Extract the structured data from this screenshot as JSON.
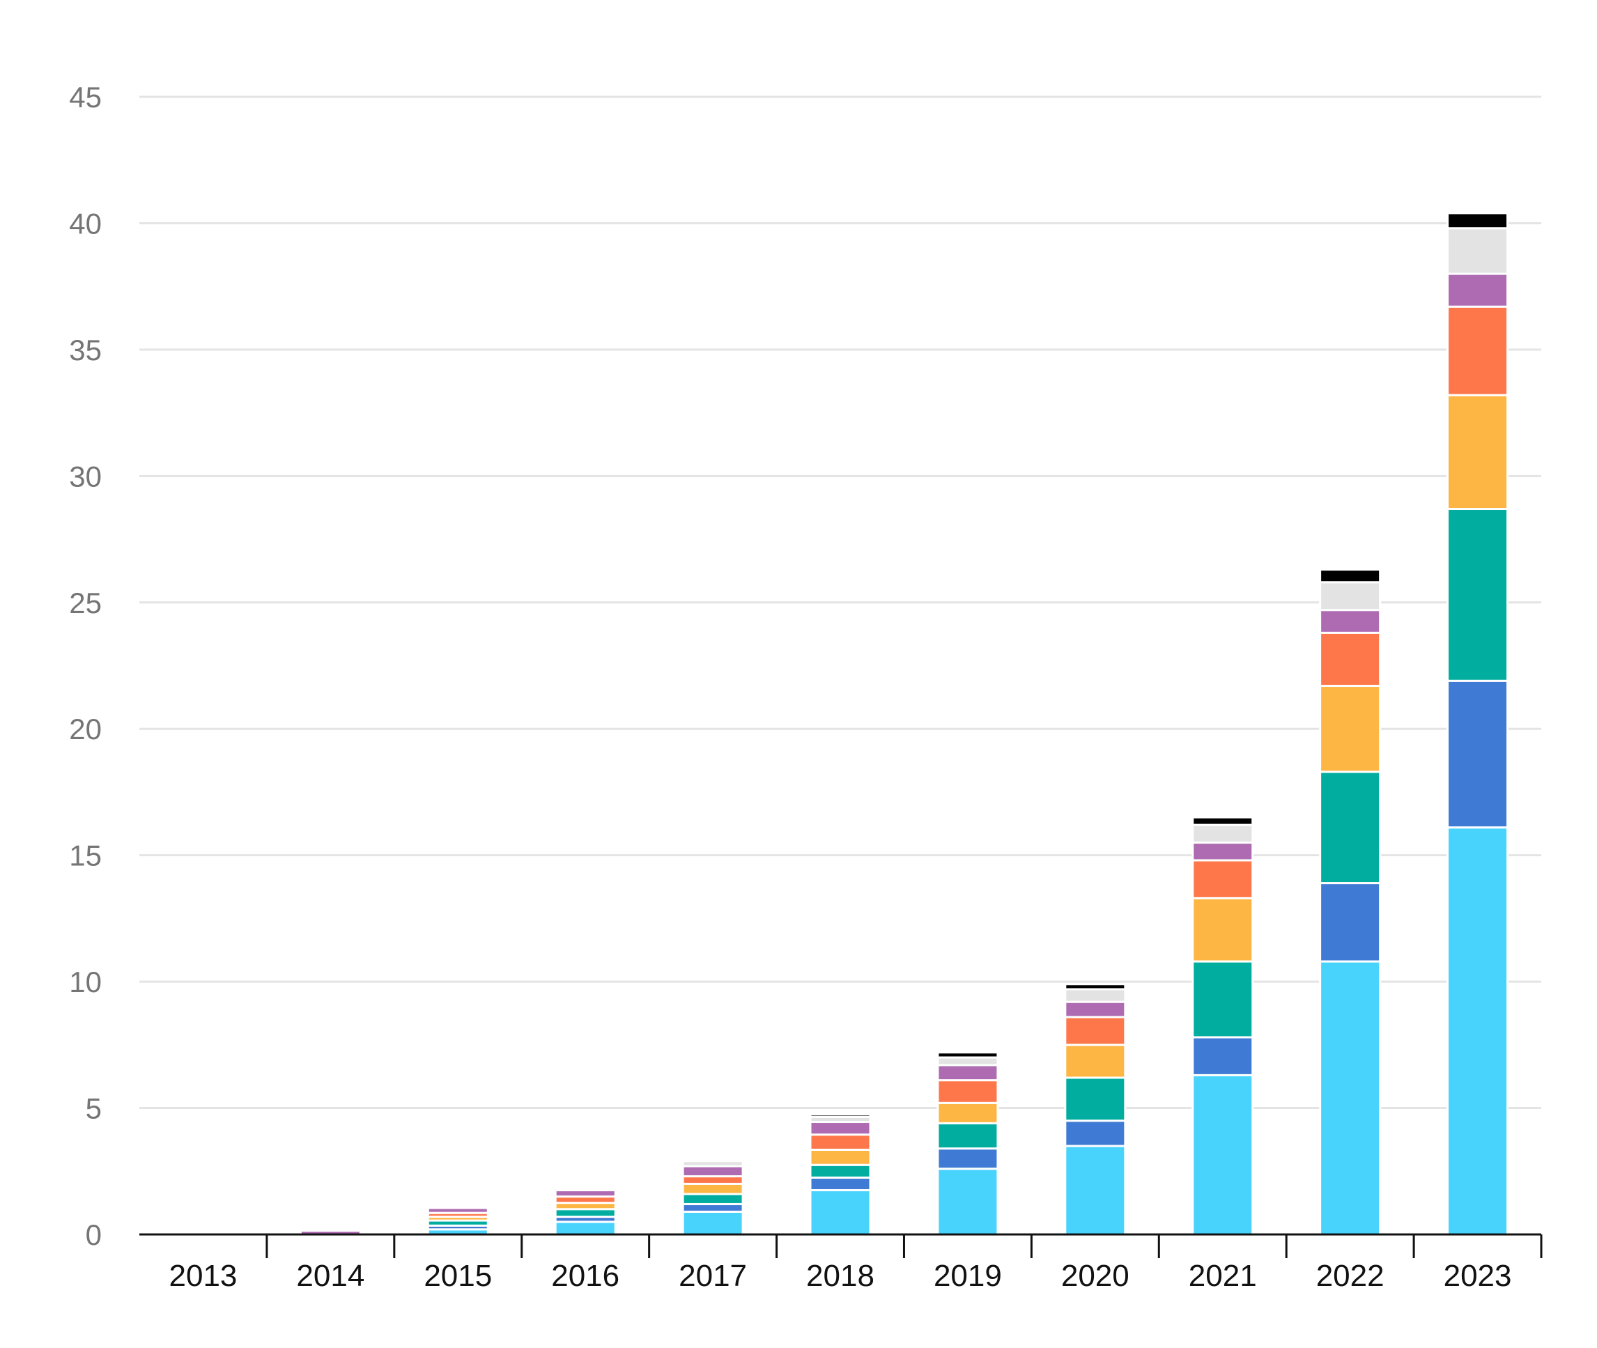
{
  "chart_data": {
    "type": "bar",
    "stacked": true,
    "categories": [
      "2013",
      "2014",
      "2015",
      "2016",
      "2017",
      "2018",
      "2019",
      "2020",
      "2021",
      "2022",
      "2023"
    ],
    "series": [
      {
        "color": "#48D3FD",
        "values": [
          0,
          0,
          0.2,
          0.5,
          0.9,
          1.75,
          2.6,
          3.5,
          6.3,
          10.8,
          16.1
        ]
      },
      {
        "color": "#3F7BD4",
        "values": [
          0,
          0,
          0.15,
          0.2,
          0.3,
          0.5,
          0.8,
          1.0,
          1.5,
          3.1,
          5.8
        ]
      },
      {
        "color": "#00AD9F",
        "values": [
          0,
          0,
          0.2,
          0.3,
          0.4,
          0.5,
          1.0,
          1.7,
          3.0,
          4.4,
          6.8
        ]
      },
      {
        "color": "#FDB543",
        "values": [
          0,
          0,
          0.15,
          0.25,
          0.4,
          0.6,
          0.8,
          1.3,
          2.5,
          3.4,
          4.5
        ]
      },
      {
        "color": "#FE774A",
        "values": [
          0,
          0,
          0.15,
          0.25,
          0.3,
          0.6,
          0.9,
          1.1,
          1.5,
          2.1,
          3.5
        ]
      },
      {
        "color": "#AE6BB1",
        "values": [
          0,
          0.15,
          0.2,
          0.25,
          0.4,
          0.5,
          0.6,
          0.6,
          0.7,
          0.9,
          1.3
        ]
      },
      {
        "color": "#E3E3E3",
        "values": [
          0,
          0,
          0,
          0,
          0.2,
          0.2,
          0.3,
          0.5,
          0.7,
          1.1,
          1.8
        ]
      },
      {
        "color": "#000000",
        "values": [
          0,
          0,
          0,
          0,
          0,
          0.1,
          0.2,
          0.2,
          0.3,
          0.5,
          0.6
        ]
      }
    ],
    "yticks": [
      0,
      5,
      10,
      15,
      20,
      25,
      30,
      35,
      40,
      45
    ],
    "ylim": [
      0,
      45
    ],
    "grid": true,
    "legend": "none",
    "title": "",
    "xlabel": "",
    "ylabel": ""
  }
}
